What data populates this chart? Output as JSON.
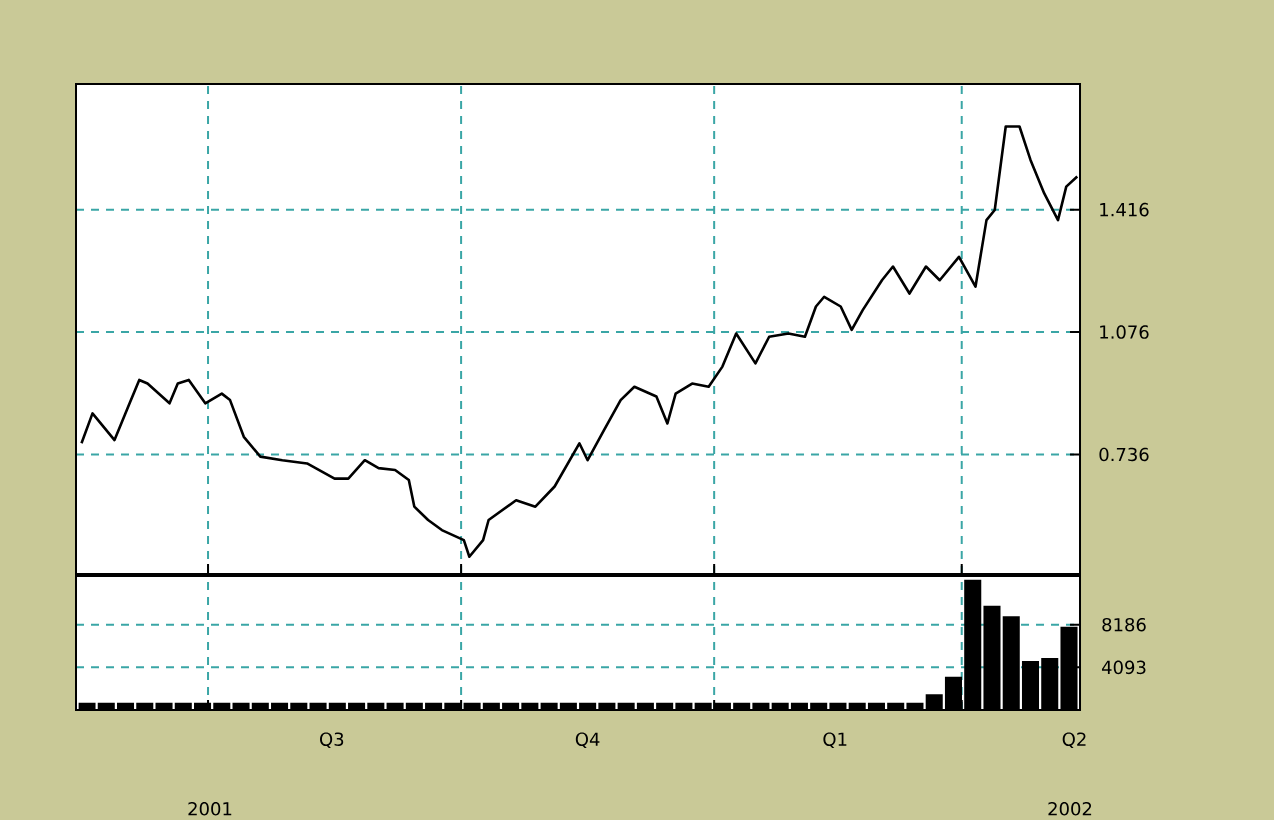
{
  "chart_data": [
    {
      "type": "line",
      "color": "#000000",
      "xlim": [
        "2001-05-14",
        "2002-05-14"
      ],
      "ylim": [
        0.404,
        1.765
      ],
      "yticks": [
        0.736,
        1.076,
        1.416
      ],
      "grid": true,
      "tick_labels": "y",
      "xticks": [
        {
          "value": "2001-07-01",
          "label": null
        },
        {
          "value": "2001-10-01",
          "label": null
        },
        {
          "value": "2002-01-01",
          "label": null
        },
        {
          "value": "2002-04-01",
          "label": null
        }
      ],
      "x": [
        "2001-05-16",
        "2001-05-20",
        "2001-05-28",
        "2001-06-02",
        "2001-06-06",
        "2001-06-09",
        "2001-06-17",
        "2001-06-20",
        "2001-06-24",
        "2001-06-30",
        "2001-07-06",
        "2001-07-09",
        "2001-07-14",
        "2001-07-20",
        "2001-07-28",
        "2001-08-06",
        "2001-08-16",
        "2001-08-21",
        "2001-08-27",
        "2001-09-01",
        "2001-09-07",
        "2001-09-12",
        "2001-09-14",
        "2001-09-19",
        "2001-09-24",
        "2001-10-02",
        "2001-10-04",
        "2001-10-09",
        "2001-10-11",
        "2001-10-21",
        "2001-10-28",
        "2001-11-04",
        "2001-11-13",
        "2001-11-16",
        "2001-11-22",
        "2001-11-28",
        "2001-12-03",
        "2001-12-11",
        "2001-12-15",
        "2001-12-18",
        "2001-12-24",
        "2001-12-30",
        "2002-01-04",
        "2002-01-09",
        "2002-01-16",
        "2002-01-21",
        "2002-01-28",
        "2002-02-03",
        "2002-02-07",
        "2002-02-10",
        "2002-02-16",
        "2002-02-20",
        "2002-02-24",
        "2002-03-03",
        "2002-03-07",
        "2002-03-13",
        "2002-03-19",
        "2002-03-24",
        "2002-03-31",
        "2002-04-06",
        "2002-04-10",
        "2002-04-13",
        "2002-04-17",
        "2002-04-22",
        "2002-04-26",
        "2002-05-01",
        "2002-05-06",
        "2002-05-09",
        "2002-05-13"
      ],
      "values": [
        0.767,
        0.85,
        0.776,
        0.869,
        0.943,
        0.933,
        0.878,
        0.933,
        0.943,
        0.878,
        0.905,
        0.887,
        0.785,
        0.73,
        0.72,
        0.711,
        0.669,
        0.669,
        0.72,
        0.698,
        0.693,
        0.665,
        0.591,
        0.554,
        0.526,
        0.498,
        0.452,
        0.498,
        0.554,
        0.609,
        0.591,
        0.647,
        0.767,
        0.72,
        0.804,
        0.887,
        0.924,
        0.897,
        0.822,
        0.905,
        0.933,
        0.924,
        0.98,
        1.072,
        0.989,
        1.063,
        1.072,
        1.063,
        1.147,
        1.174,
        1.147,
        1.082,
        1.137,
        1.22,
        1.258,
        1.183,
        1.258,
        1.22,
        1.285,
        1.202,
        1.387,
        1.415,
        1.647,
        1.647,
        1.554,
        1.461,
        1.387,
        1.48,
        1.508
      ]
    },
    {
      "type": "bar",
      "color": "#000000",
      "xlim": [
        "2001-05-14",
        "2002-05-14"
      ],
      "ylim": [
        0,
        12860
      ],
      "yticks": [
        4093,
        8186
      ],
      "grid": true,
      "xticks": [
        {
          "value": "2001-07-01",
          "label": null
        },
        {
          "value": "2001-10-01",
          "label": null
        },
        {
          "value": "2002-01-01",
          "label": null
        },
        {
          "value": "2002-04-01",
          "label": null
        },
        {
          "value": "2001-08-15",
          "label": "Q3"
        },
        {
          "value": "2001-11-16",
          "label": "Q4"
        },
        {
          "value": "2002-02-14",
          "label": "Q1"
        },
        {
          "value": "2002-05-12",
          "label": "Q2"
        }
      ],
      "annotations": [
        "2001",
        "2002"
      ],
      "x": [
        "2001-05-18",
        "2001-05-25",
        "2001-06-01",
        "2001-06-08",
        "2001-06-15",
        "2001-06-22",
        "2001-06-29",
        "2001-07-06",
        "2001-07-13",
        "2001-07-20",
        "2001-07-27",
        "2001-08-03",
        "2001-08-10",
        "2001-08-17",
        "2001-08-24",
        "2001-08-31",
        "2001-09-07",
        "2001-09-14",
        "2001-09-21",
        "2001-09-28",
        "2001-10-05",
        "2001-10-12",
        "2001-10-19",
        "2001-10-26",
        "2001-11-02",
        "2001-11-09",
        "2001-11-16",
        "2001-11-23",
        "2001-11-30",
        "2001-12-07",
        "2001-12-14",
        "2001-12-21",
        "2001-12-28",
        "2002-01-04",
        "2002-01-11",
        "2002-01-18",
        "2002-01-25",
        "2002-02-01",
        "2002-02-08",
        "2002-02-15",
        "2002-02-22",
        "2002-03-01",
        "2002-03-08",
        "2002-03-15",
        "2002-03-22",
        "2002-03-29",
        "2002-04-05",
        "2002-04-12",
        "2002-04-19",
        "2002-04-26",
        "2002-05-03",
        "2002-05-10"
      ],
      "values": [
        700,
        700,
        700,
        700,
        700,
        700,
        700,
        700,
        700,
        700,
        700,
        700,
        700,
        700,
        700,
        700,
        700,
        700,
        700,
        700,
        700,
        700,
        700,
        700,
        700,
        700,
        700,
        700,
        700,
        700,
        700,
        700,
        700,
        700,
        700,
        700,
        700,
        700,
        700,
        700,
        700,
        700,
        700,
        700,
        1500,
        3200,
        12500,
        10000,
        9000,
        4700,
        5000,
        8000
      ]
    }
  ]
}
